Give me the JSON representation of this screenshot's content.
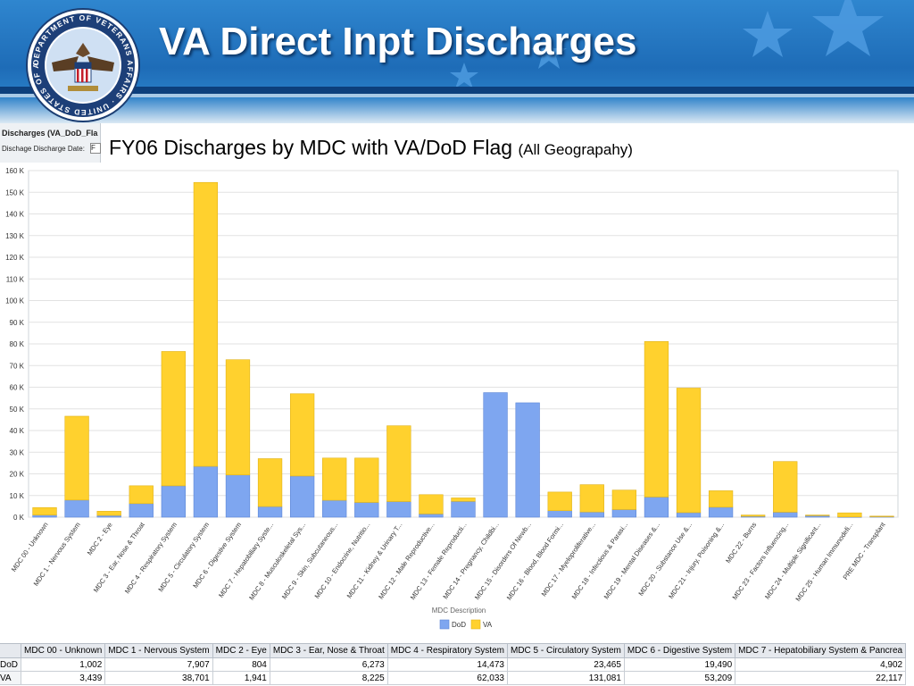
{
  "slide": {
    "title": "VA Direct Inpt Discharges",
    "seal_text": "DEPARTMENT OF VETERANS AFFAIRS · UNITED STATES OF AMERICA"
  },
  "report": {
    "name": "Discharges (VA_DoD_Fla",
    "param_label": "Dischage Discharge Date:",
    "param_value": "F"
  },
  "chart_title": {
    "main": "FY06 Discharges by MDC with VA/DoD Flag",
    "sub": "(All Geograpahy)"
  },
  "colors": {
    "dod": "#7ea6f0",
    "va": "#ffd12e",
    "grid": "#e2e2e2"
  },
  "chart_data": {
    "type": "bar",
    "stacked": true,
    "xlabel": "MDC Description",
    "ylabel": "",
    "ylim": [
      0,
      160000
    ],
    "yticks": [
      "0 K",
      "10 K",
      "20 K",
      "30 K",
      "40 K",
      "50 K",
      "60 K",
      "70 K",
      "80 K",
      "90 K",
      "100 K",
      "110 K",
      "120 K",
      "130 K",
      "140 K",
      "150 K",
      "160 K"
    ],
    "legend_position": "bottom",
    "categories": [
      "MDC 00 - Unknown",
      "MDC 1 - Nervous System",
      "MDC 2 - Eye",
      "MDC 3 - Ear, Nose & Throat",
      "MDC 4 - Respiratory System",
      "MDC 5 - Circulatory System",
      "MDC 6 - Digestive System",
      "MDC 7 - Hepatobiliary Syste...",
      "MDC 8 - Musculoskeletal Sys...",
      "MDC 9 - Skin, Subcutaneous...",
      "MDC 10 - Endocrine, Nutritio...",
      "MDC 11 - Kidney & Urinary T...",
      "MDC 12 - Male Reproductive...",
      "MDC 13 - Female Reproducti...",
      "MDC 14 - Pregnancy, Childbi...",
      "MDC 15 - Disorders Of Newb...",
      "MDC 16 - Blood, Blood Formi...",
      "MDC 17 - Myeloproliferative...",
      "MDC 18 - Infectious & Parasi...",
      "MDC 19 - Mental Diseases &...",
      "MDC 20 - Substance Use &...",
      "MDC 21 - Injury, Poisoning &...",
      "MDC 22 - Burns",
      "MDC 23 - Factors Influencing...",
      "MDC 24 - Multiple Significant...",
      "MDC 25 - Human Immunodefi...",
      "PRE MDC - Transplant"
    ],
    "series": [
      {
        "name": "DoD",
        "values": [
          1002,
          7907,
          804,
          6273,
          14473,
          23465,
          19490,
          4902,
          19000,
          7800,
          6800,
          7200,
          1500,
          7300,
          57500,
          52800,
          3000,
          2400,
          3500,
          9300,
          2100,
          4600,
          400,
          2300,
          700,
          100,
          200
        ]
      },
      {
        "name": "VA",
        "values": [
          3439,
          38701,
          1941,
          8225,
          62033,
          131081,
          53209,
          22117,
          38000,
          19500,
          20500,
          35000,
          8900,
          1600,
          0,
          0,
          8600,
          12600,
          9000,
          71800,
          57500,
          7600,
          600,
          23400,
          300,
          1900,
          300
        ]
      }
    ]
  },
  "table": {
    "headers": [
      "MDC 00 - Unknown",
      "MDC 1 - Nervous System",
      "MDC 2 - Eye",
      "MDC 3 - Ear, Nose & Throat",
      "MDC 4 - Respiratory System",
      "MDC 5 - Circulatory System",
      "MDC 6 - Digestive System",
      "MDC 7 - Hepatobiliary System & Pancrea"
    ],
    "rows": [
      {
        "label": "DoD",
        "cells": [
          "1,002",
          "7,907",
          "804",
          "6,273",
          "14,473",
          "23,465",
          "19,490",
          "4,902"
        ]
      },
      {
        "label": "VA",
        "cells": [
          "3,439",
          "38,701",
          "1,941",
          "8,225",
          "62,033",
          "131,081",
          "53,209",
          "22,117"
        ]
      }
    ]
  }
}
